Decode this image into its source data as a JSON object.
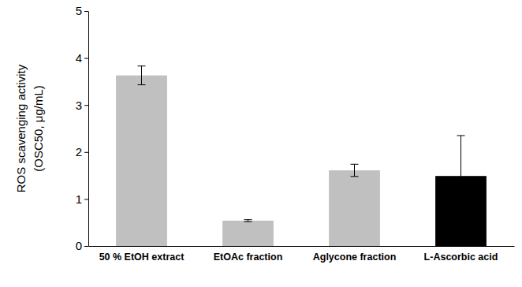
{
  "chart_data": {
    "type": "bar",
    "categories": [
      "50 % EtOH extract",
      "EtOAc fraction",
      "Aglycone fraction",
      "L-Ascorbic acid"
    ],
    "values": [
      3.63,
      0.54,
      1.61,
      1.49
    ],
    "errors": [
      0.2,
      0.02,
      0.13,
      0.86
    ],
    "colors": [
      "#c0c0c0",
      "#c0c0c0",
      "#c0c0c0",
      "#000000"
    ],
    "ylabel": [
      "ROS scavenging activity",
      "(OSC50, μg/mL)"
    ],
    "ylim": [
      0,
      5
    ],
    "yticks": [
      0,
      1,
      2,
      3,
      4,
      5
    ],
    "grid": false
  }
}
